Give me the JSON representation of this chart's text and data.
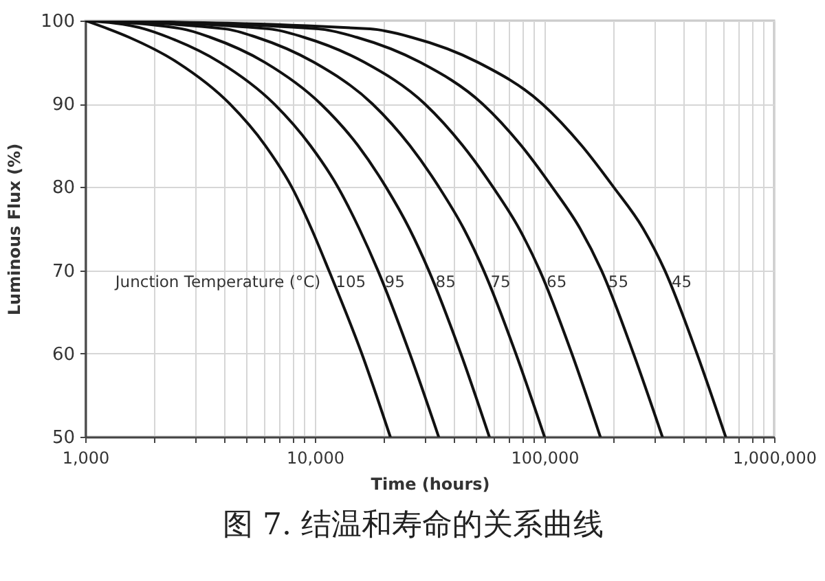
{
  "chart_data": {
    "type": "line",
    "title": "图 7. 结温和寿命的关系曲线",
    "xlabel": "Time (hours)",
    "ylabel": "Luminous Flux (%)",
    "legend_title": "Junction Temperature (°C)",
    "log": "x",
    "xlim": [
      1000,
      1000000
    ],
    "xticks": [
      {
        "value": 1000,
        "label": "1,000"
      },
      {
        "value": 2000,
        "label": null
      },
      {
        "value": 3000,
        "label": null
      },
      {
        "value": 4000,
        "label": null
      },
      {
        "value": 5000,
        "label": null
      },
      {
        "value": 6000,
        "label": null
      },
      {
        "value": 7000,
        "label": null
      },
      {
        "value": 8000,
        "label": null
      },
      {
        "value": 9000,
        "label": null
      },
      {
        "value": 10000,
        "label": "10,000"
      },
      {
        "value": 20000,
        "label": null
      },
      {
        "value": 30000,
        "label": null
      },
      {
        "value": 40000,
        "label": null
      },
      {
        "value": 50000,
        "label": null
      },
      {
        "value": 60000,
        "label": null
      },
      {
        "value": 70000,
        "label": null
      },
      {
        "value": 80000,
        "label": null
      },
      {
        "value": 90000,
        "label": null
      },
      {
        "value": 100000,
        "label": "100,000"
      },
      {
        "value": 200000,
        "label": null
      },
      {
        "value": 300000,
        "label": null
      },
      {
        "value": 400000,
        "label": null
      },
      {
        "value": 500000,
        "label": null
      },
      {
        "value": 600000,
        "label": null
      },
      {
        "value": 700000,
        "label": null
      },
      {
        "value": 800000,
        "label": null
      },
      {
        "value": 900000,
        "label": null
      },
      {
        "value": 1000000,
        "label": "1,000,000"
      }
    ],
    "ylim": [
      50,
      100
    ],
    "yticks": [
      50,
      60,
      70,
      80,
      90,
      100
    ],
    "grid": true,
    "legend": false,
    "series": [
      {
        "name": "105",
        "color": "#111111",
        "x": [
          1000,
          1260,
          1550,
          2510,
          4260,
          6080,
          7930,
          9660,
          11500,
          16000,
          21300
        ],
        "values": [
          100,
          99,
          98,
          95,
          90,
          85,
          80,
          75,
          70,
          60,
          50
        ]
      },
      {
        "name": "95",
        "color": "#111111",
        "x": [
          1000,
          1810,
          2300,
          3850,
          6640,
          9550,
          12600,
          15600,
          18800,
          25900,
          34600
        ],
        "values": [
          100,
          99,
          98,
          95,
          90,
          85,
          80,
          75,
          70,
          60,
          50
        ]
      },
      {
        "name": "85",
        "color": "#111111",
        "x": [
          1000,
          2650,
          3500,
          6040,
          10600,
          15400,
          20400,
          25800,
          31300,
          43200,
          57500
        ],
        "values": [
          100,
          99,
          98,
          95,
          90,
          85,
          80,
          75,
          70,
          60,
          50
        ]
      },
      {
        "name": "75",
        "color": "#111111",
        "x": [
          1000,
          4080,
          5570,
          9890,
          17800,
          25900,
          34700,
          44500,
          54300,
          75000,
          100000
        ],
        "values": [
          100,
          99,
          98,
          95,
          90,
          85,
          80,
          75,
          70,
          60,
          50
        ]
      },
      {
        "name": "65",
        "color": "#111111",
        "x": [
          1000,
          6340,
          8950,
          16400,
          30100,
          44000,
          59600,
          77600,
          95300,
          131500,
          175000
        ],
        "values": [
          100,
          99,
          98,
          95,
          90,
          85,
          80,
          75,
          70,
          60,
          50
        ]
      },
      {
        "name": "55",
        "color": "#111111",
        "x": [
          1000,
          10400,
          15200,
          28700,
          53700,
          79100,
          108000,
          143000,
          177000,
          244000,
          326000
        ],
        "values": [
          100,
          99,
          98,
          95,
          90,
          85,
          80,
          75,
          70,
          60,
          50
        ]
      },
      {
        "name": "45",
        "color": "#111111",
        "x": [
          1000,
          17400,
          26300,
          51200,
          97700,
          145000,
          200000,
          269000,
          334000,
          461000,
          615000
        ],
        "values": [
          100,
          99,
          98,
          95,
          90,
          85,
          80,
          75,
          70,
          60,
          50
        ]
      }
    ]
  }
}
